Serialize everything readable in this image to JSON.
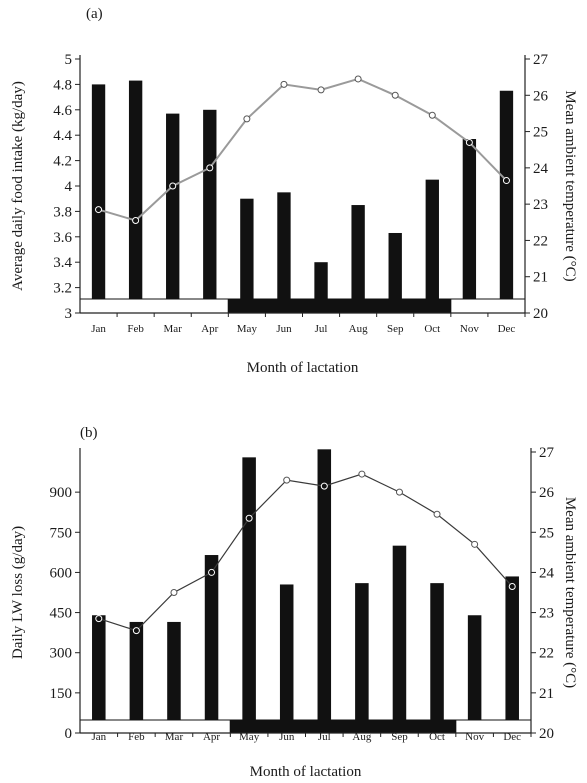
{
  "chart_data": [
    {
      "panel_label": "(a)",
      "type": "bar+line",
      "categories": [
        "Jan",
        "Feb",
        "Mar",
        "Apr",
        "May",
        "Jun",
        "Jul",
        "Aug",
        "Sep",
        "Oct",
        "Nov",
        "Dec"
      ],
      "xlabel": "Month of lactation",
      "ylabel": "Average daily food intake (kg/day)",
      "ylim": [
        3,
        5
      ],
      "yticks": [
        "3",
        "3.2",
        "3.4",
        "3.6",
        "3.8",
        "4",
        "4.2",
        "4.4",
        "4.6",
        "4.8",
        "5"
      ],
      "y2label": "Mean ambient temperature (°C)",
      "y2lim": [
        20,
        27
      ],
      "y2ticks": [
        "20",
        "21",
        "22",
        "23",
        "24",
        "25",
        "26",
        "27"
      ],
      "bars": [
        4.8,
        4.83,
        4.57,
        4.6,
        3.9,
        3.95,
        3.4,
        3.85,
        3.63,
        4.05,
        4.37,
        4.75
      ],
      "temperature": [
        22.85,
        22.55,
        23.5,
        24.0,
        25.35,
        26.3,
        26.15,
        26.45,
        26.0,
        25.45,
        24.7,
        23.65
      ],
      "season_bands": [
        {
          "from": "Jan",
          "to": "Apr",
          "fill": "white"
        },
        {
          "from": "May",
          "to": "Oct",
          "fill": "black"
        },
        {
          "from": "Nov",
          "to": "Dec",
          "fill": "white"
        }
      ],
      "grid": false,
      "line_color": "#9a9a9a"
    },
    {
      "panel_label": "(b)",
      "type": "bar+line",
      "categories": [
        "Jan",
        "Feb",
        "Mar",
        "Apr",
        "May",
        "Jun",
        "Jul",
        "Aug",
        "Sep",
        "Oct",
        "Nov",
        "Dec"
      ],
      "xlabel": "Month of lactation",
      "ylabel": "Daily LW loss (g/day)",
      "ylim": [
        0,
        1050
      ],
      "yticks": [
        "0",
        "150",
        "300",
        "450",
        "600",
        "750",
        "900"
      ],
      "y2label": "Mean ambient temperature (°C)",
      "y2lim": [
        20,
        27
      ],
      "y2ticks": [
        "20",
        "21",
        "22",
        "23",
        "24",
        "25",
        "26",
        "27"
      ],
      "bars": [
        440,
        415,
        415,
        665,
        1030,
        555,
        1060,
        560,
        700,
        560,
        440,
        585
      ],
      "temperature": [
        22.85,
        22.55,
        23.5,
        24.0,
        25.35,
        26.3,
        26.15,
        26.45,
        26.0,
        25.45,
        24.7,
        23.65
      ],
      "season_bands": [
        {
          "from": "Jan",
          "to": "Apr",
          "fill": "white"
        },
        {
          "from": "May",
          "to": "Oct",
          "fill": "black"
        },
        {
          "from": "Nov",
          "to": "Dec",
          "fill": "white"
        }
      ],
      "grid": false,
      "line_color": "#3a3a3a"
    }
  ]
}
